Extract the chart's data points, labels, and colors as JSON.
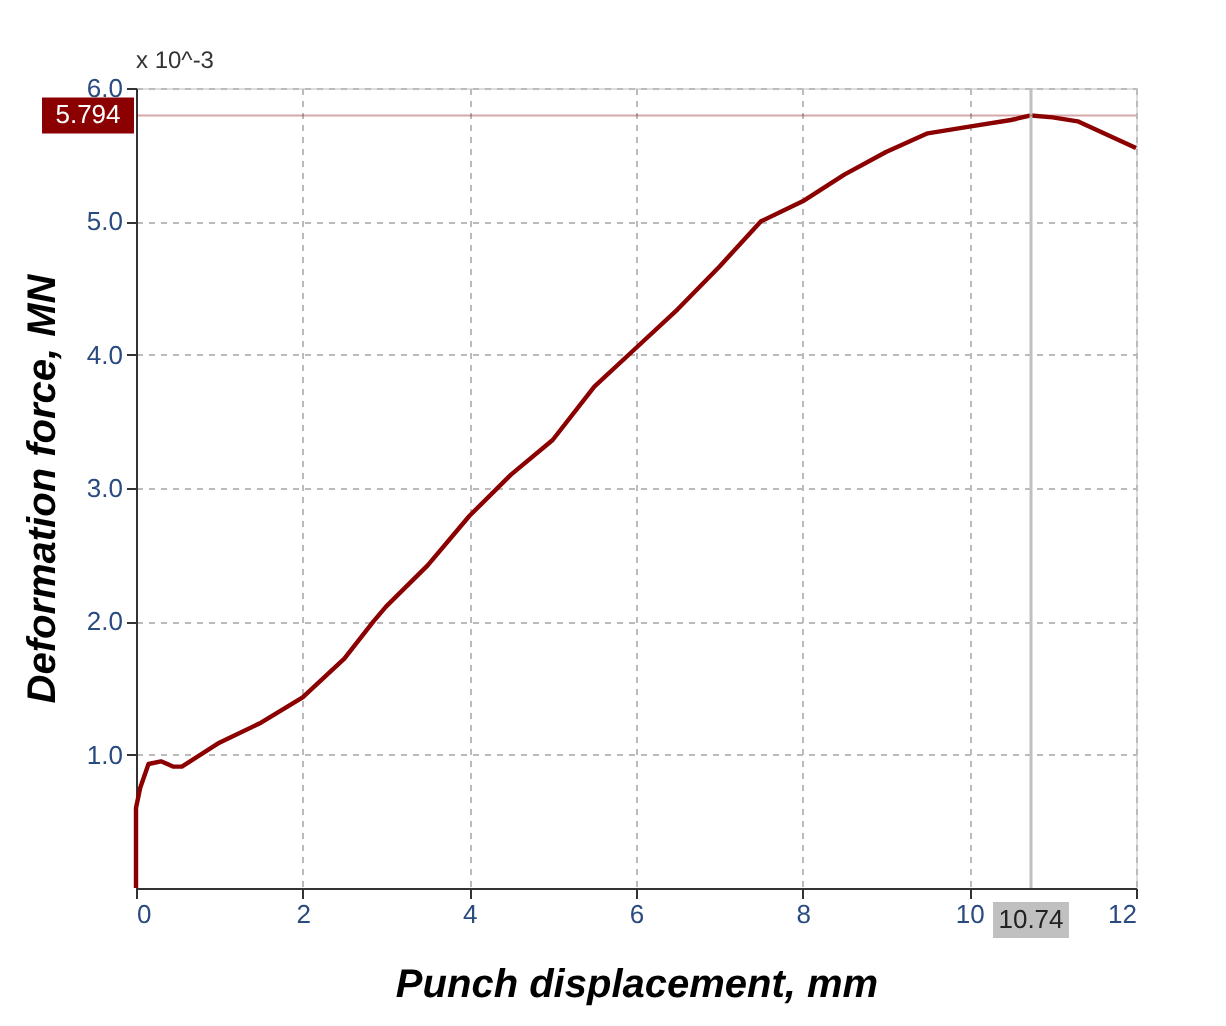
{
  "chart_data": {
    "type": "line",
    "xlabel": "Punch displacement, mm",
    "ylabel": "Deformation force, MN",
    "annotations": [
      "x 10^-3"
    ],
    "x": [
      0,
      0,
      0.05,
      0.15,
      0.3,
      0.45,
      0.55,
      1,
      1.5,
      2,
      2.5,
      2.85,
      3,
      3.5,
      4,
      4.5,
      5,
      5.5,
      6,
      6.5,
      7,
      7.5,
      8,
      8.5,
      9,
      9.5,
      10,
      10.5,
      10.74,
      11,
      11.3,
      12
    ],
    "series": [
      {
        "color": "#8b0000",
        "values": [
          0,
          0.6,
          0.75,
          0.93,
          0.95,
          0.91,
          0.91,
          1.09,
          1.24,
          1.43,
          1.72,
          2.0,
          2.11,
          2.42,
          2.79,
          3.1,
          3.36,
          3.76,
          4.05,
          4.34,
          4.66,
          5.0,
          5.15,
          5.35,
          5.52,
          5.66,
          5.71,
          5.76,
          5.794,
          5.78,
          5.75,
          5.55
        ]
      }
    ],
    "xlim": [
      0,
      12
    ],
    "xticks": [
      0,
      2,
      4,
      6,
      8,
      10,
      12
    ],
    "ylim": [
      0,
      6
    ],
    "yticks": [
      {
        "value": 1,
        "label": "1.0"
      },
      {
        "value": 2,
        "label": "2.0"
      },
      {
        "value": 3,
        "label": "3.0"
      },
      {
        "value": 4,
        "label": "4.0"
      },
      {
        "value": 5,
        "label": "5.0"
      },
      {
        "value": 6,
        "label": "6.0"
      }
    ],
    "ref_lines": [
      {
        "axis": "x",
        "value": 10.74,
        "label": "10.74",
        "color": "#c0c0c0"
      },
      {
        "axis": "y",
        "value": 5.794,
        "label": "5.794",
        "color": "#8b0000"
      }
    ],
    "grid": true,
    "line_style": "solid",
    "marker": "none"
  }
}
